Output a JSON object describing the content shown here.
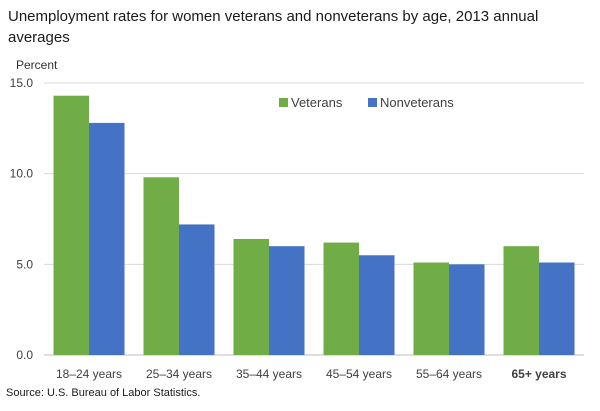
{
  "chart_data": {
    "type": "bar",
    "title": "Unemployment rates for women veterans and nonveterans by age, 2013 annual averages",
    "ylabel": "Percent",
    "xlabel": "",
    "categories": [
      "18–24 years",
      "25–34 years",
      "35–44 years",
      "45–54 years",
      "55–64 years",
      "65+ years"
    ],
    "series": [
      {
        "name": "Veterans",
        "color": "#70ad47",
        "values": [
          14.3,
          9.8,
          6.4,
          6.2,
          5.1,
          6.0
        ]
      },
      {
        "name": "Nonveterans",
        "color": "#4472c4",
        "values": [
          12.8,
          7.2,
          6.0,
          5.5,
          5.0,
          5.1
        ]
      }
    ],
    "ylim": [
      0,
      15
    ],
    "yticks": [
      "0.0",
      "5.0",
      "10.0",
      "15.0"
    ],
    "ytick_values": [
      0,
      5,
      10,
      15
    ],
    "grid": true,
    "legend_position": "top-right",
    "source": "Source: U.S. Bureau of Labor Statistics."
  }
}
